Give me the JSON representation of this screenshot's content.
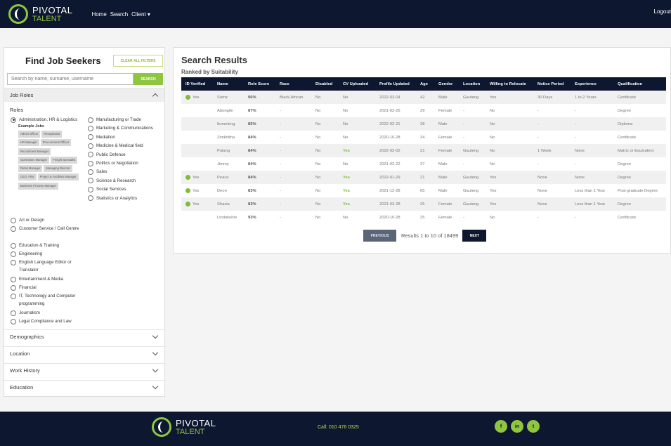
{
  "brand": {
    "name_line1": "PIVOTAL",
    "name_line2": "TALENT",
    "accent": "#8fc63f",
    "navy": "#0d1730"
  },
  "nav": {
    "items": [
      "Home",
      "Search",
      "Client ▾"
    ],
    "logout": "Logout"
  },
  "filters": {
    "title": "Find Job Seekers",
    "clear_all": "CLEAR ALL FILTERS",
    "search_placeholder": "Search by name, surname, username",
    "search_button": "SEARCH",
    "job_roles": "Job Roles",
    "roles_label": "Roles",
    "example_jobs_label": "Example Jobs",
    "roles_col1": [
      "Administration, HR & Logistics",
      "Art or Design",
      "Customer Service / Call Centre",
      "Education & Training",
      "Engineering",
      "English Language Editor or Translator",
      "Entertainment & Media",
      "Financial",
      "IT, Technology and Computer programming",
      "Journalism",
      "Legal Compliance and Law"
    ],
    "roles_col2": [
      "Manufacturing or Trade",
      "Marketing & Communications",
      "Mediation",
      "Medicine & Medical field",
      "Public Defence",
      "Politics or Negotiation",
      "Sales",
      "Science & Research",
      "Social Services",
      "Statistics or Analytics"
    ],
    "example_jobs": [
      "Admin Officer",
      "Receptionist",
      "HR Manager",
      "Procurement Officer",
      "Recruitment Manager",
      "Operations Manager",
      "Freight Specialist",
      "Retail Manager",
      "Managing Director",
      "CEO, Pilot",
      "Project & Facilities Manager",
      "Business Process Manager"
    ],
    "sections": [
      "Demographics",
      "Location",
      "Work History",
      "Education"
    ]
  },
  "results": {
    "title": "Search Results",
    "subtitle": "Ranked by Suitability",
    "columns": [
      "ID Verified",
      "Name",
      "Role Score",
      "Race",
      "Disabled",
      "CV Uploaded",
      "Profile Updated",
      "Age",
      "Gender",
      "Location",
      "Willing to Relocate",
      "Notice Period",
      "Experience",
      "Qualification"
    ],
    "rows": [
      [
        "Yes",
        "Some",
        "96%",
        "Black African",
        "No",
        "No",
        "2022-03-04",
        "42",
        "Male",
        "Gauteng",
        "Yes",
        "30 Days",
        "1 to 2 Years",
        "Certificate"
      ],
      [
        "",
        "Abongile",
        "87%",
        "-",
        "No",
        "No",
        "2021-02-25",
        "29",
        "Female",
        "-",
        "No",
        "-",
        "-",
        "Degree"
      ],
      [
        "",
        "Itumeleng",
        "85%",
        "-",
        "No",
        "No",
        "2022-02-21",
        "28",
        "Male",
        "-",
        "No",
        "-",
        "-",
        "Diploma"
      ],
      [
        "",
        "Zimkhitha",
        "84%",
        "-",
        "No",
        "No",
        "2020-10-28",
        "34",
        "Female",
        "-",
        "No",
        "-",
        "-",
        "Certificate"
      ],
      [
        "",
        "Pulang",
        "84%",
        "-",
        "No",
        "Yes",
        "2022-02-02",
        "21",
        "Female",
        "Gauteng",
        "No",
        "1 Week",
        "None",
        "Matric or Equivalent"
      ],
      [
        "",
        "Jimmy",
        "84%",
        "-",
        "No",
        "No",
        "2021-02-22",
        "37",
        "Male",
        "-",
        "No",
        "-",
        "-",
        "Degree"
      ],
      [
        "Yes",
        "Peace",
        "84%",
        "-",
        "No",
        "Yes",
        "2022-01-29",
        "21",
        "Male",
        "Gauteng",
        "Yes",
        "None",
        "None",
        "Degree"
      ],
      [
        "Yes",
        "Deon",
        "83%",
        "-",
        "No",
        "Yes",
        "2021-12-28",
        "65",
        "Male",
        "Gauteng",
        "Yes",
        "None",
        "Less than 1 Year",
        "Post-graduate Degree"
      ],
      [
        "Yes",
        "Shazia",
        "83%",
        "-",
        "No",
        "Yes",
        "2021-03-28",
        "25",
        "Female",
        "Gauteng",
        "Yes",
        "None",
        "Less than 1 Year",
        "Degree"
      ],
      [
        "",
        "Lindokuhle",
        "93%",
        "-",
        "No",
        "No",
        "2020-10-28",
        "25",
        "Female",
        "-",
        "No",
        "-",
        "-",
        "Certificate"
      ]
    ],
    "prev_button": "PREVIOUS",
    "next_button": "NEXT",
    "pagination_text": "Results 1 to 10 of 18499"
  },
  "footer": {
    "call": "Call: 010 476 0325",
    "social_icons": [
      "facebook-icon",
      "linkedin-icon",
      "twitter-icon"
    ],
    "social_glyphs": [
      "f",
      "in",
      "t"
    ]
  }
}
